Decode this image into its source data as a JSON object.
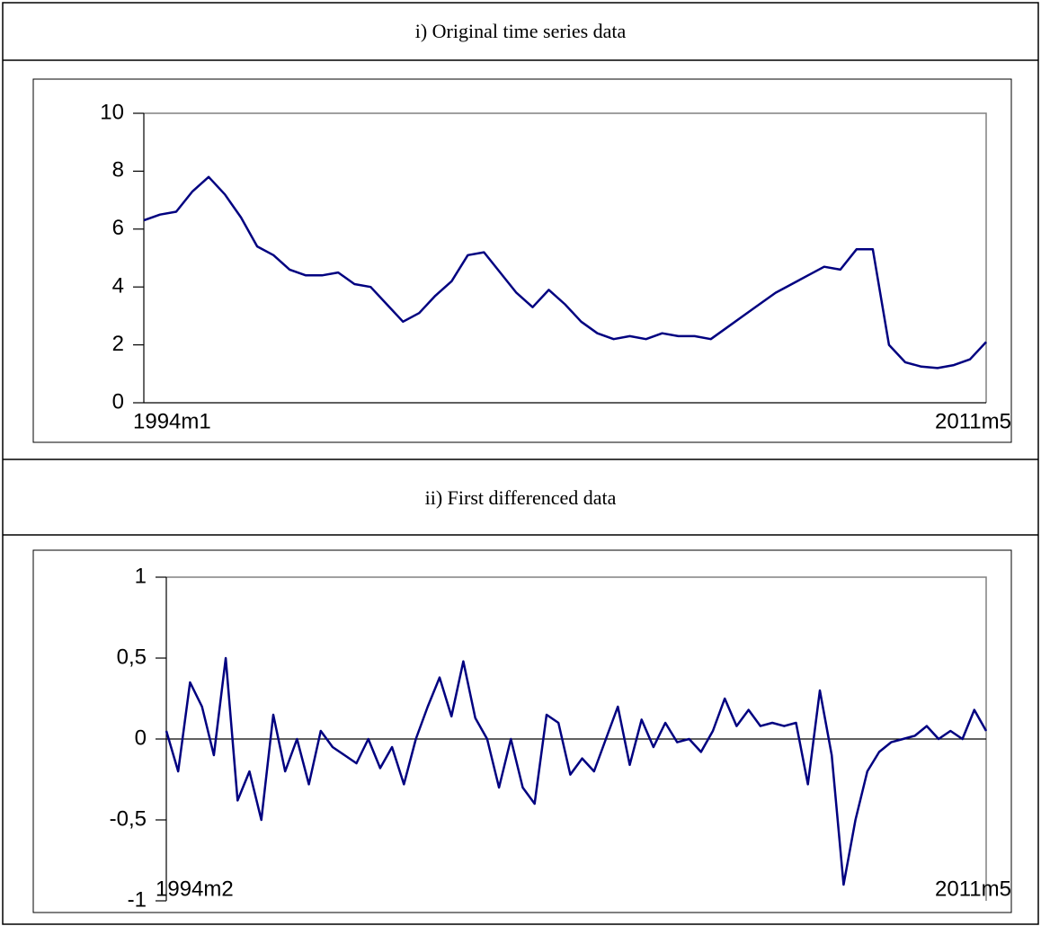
{
  "chart_data": [
    {
      "type": "line",
      "title": "i) Original time series data",
      "categories": [
        "1994m1",
        null,
        null,
        null,
        null,
        null,
        null,
        null,
        null,
        null,
        null,
        null,
        null,
        null,
        null,
        null,
        null,
        null,
        null,
        null,
        null,
        null,
        null,
        null,
        null,
        null,
        null,
        null,
        null,
        null,
        null,
        null,
        null,
        null,
        null,
        null,
        null,
        null,
        null,
        null,
        null,
        null,
        null,
        null,
        null,
        null,
        null,
        null,
        null,
        null,
        null,
        null,
        "2011m5"
      ],
      "values": [
        6.3,
        6.5,
        6.6,
        7.3,
        7.8,
        7.2,
        6.4,
        5.4,
        5.1,
        4.6,
        4.4,
        4.4,
        4.5,
        4.1,
        4.0,
        3.4,
        2.8,
        3.1,
        3.7,
        4.2,
        5.1,
        5.2,
        4.5,
        3.8,
        3.3,
        3.9,
        3.4,
        2.8,
        2.4,
        2.2,
        2.3,
        2.2,
        2.4,
        2.3,
        2.3,
        2.2,
        2.6,
        3.0,
        3.4,
        3.8,
        4.1,
        4.4,
        4.7,
        4.6,
        5.3,
        5.3,
        2.0,
        1.4,
        1.25,
        1.2,
        1.3,
        1.5,
        2.1
      ],
      "color": "#000080",
      "ylim": [
        0,
        10
      ],
      "yticks": [
        0,
        2,
        4,
        6,
        8,
        10
      ]
    },
    {
      "type": "line",
      "title": "ii) First differenced data",
      "categories": [
        "1994m2",
        null,
        null,
        null,
        null,
        null,
        null,
        null,
        null,
        null,
        null,
        null,
        null,
        null,
        null,
        null,
        null,
        null,
        null,
        null,
        null,
        null,
        null,
        null,
        null,
        null,
        null,
        null,
        null,
        null,
        null,
        null,
        null,
        null,
        null,
        null,
        null,
        null,
        null,
        null,
        null,
        null,
        null,
        null,
        null,
        null,
        null,
        null,
        null,
        null,
        null,
        null,
        null,
        null,
        null,
        null,
        null,
        null,
        null,
        null,
        null,
        null,
        null,
        null,
        null,
        null,
        null,
        null,
        null,
        "2011m5"
      ],
      "values": [
        0.05,
        -0.2,
        0.35,
        0.2,
        -0.1,
        0.5,
        -0.38,
        -0.2,
        -0.5,
        0.15,
        -0.2,
        0.0,
        -0.28,
        0.05,
        -0.05,
        -0.1,
        -0.15,
        0.0,
        -0.18,
        -0.05,
        -0.28,
        0.0,
        0.2,
        0.38,
        0.14,
        0.48,
        0.13,
        0.0,
        -0.3,
        0.0,
        -0.3,
        -0.4,
        0.15,
        0.1,
        -0.22,
        -0.12,
        -0.2,
        0.0,
        0.2,
        -0.16,
        0.12,
        -0.05,
        0.1,
        -0.02,
        0.0,
        -0.08,
        0.05,
        0.25,
        0.08,
        0.18,
        0.08,
        0.1,
        0.08,
        0.1,
        -0.28,
        0.3,
        -0.1,
        -0.9,
        -0.5,
        -0.2,
        -0.08,
        -0.02,
        0.0,
        0.02,
        0.08,
        0.0,
        0.05,
        0.0,
        0.18,
        0.05
      ],
      "color": "#000080",
      "ylim": [
        -1,
        1
      ],
      "yticks": [
        -1,
        {
          "value": -0.5,
          "label": "-0,5"
        },
        0,
        {
          "value": 0.5,
          "label": "0,5"
        },
        1
      ]
    }
  ]
}
